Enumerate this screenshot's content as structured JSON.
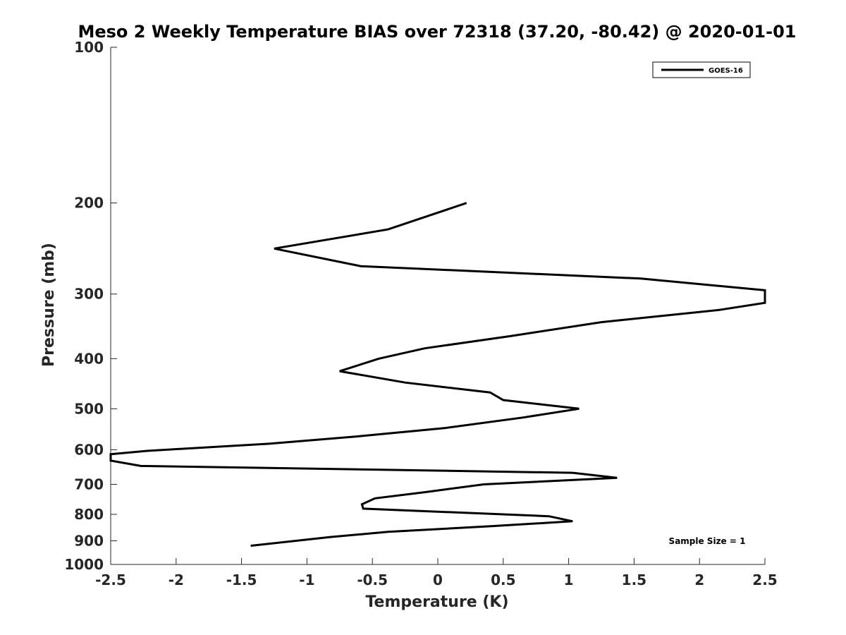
{
  "chart_data": {
    "type": "line",
    "title": "Meso 2 Weekly Temperature BIAS over 72318 (37.20, -80.42) @ 2020-01-01",
    "xlabel": "Temperature (K)",
    "ylabel": "Pressure (mb)",
    "xlim": [
      -2.5,
      2.5
    ],
    "ylim": [
      100,
      1000
    ],
    "yscale": "log",
    "y_reversed": true,
    "x_ticks": [
      "-2.5",
      "-2",
      "-1.5",
      "-1",
      "-0.5",
      "0",
      "0.5",
      "1",
      "1.5",
      "2",
      "2.5"
    ],
    "y_ticks": [
      "100",
      "200",
      "300",
      "400",
      "500",
      "600",
      "700",
      "800",
      "900",
      "1000"
    ],
    "grid": false,
    "legend": {
      "position": "top-right",
      "entries": [
        "GOES-16"
      ]
    },
    "annotation": "Sample Size = 1",
    "series": [
      {
        "name": "GOES-16",
        "color": "#000000",
        "x": [
          0.22,
          -0.38,
          -1.25,
          -0.59,
          1.55,
          2.5,
          2.5,
          2.15,
          1.25,
          0.55,
          -0.1,
          -0.45,
          -0.75,
          -0.25,
          0.4,
          0.5,
          1.08,
          0.65,
          0.05,
          -0.6,
          -1.28,
          -2.22,
          -2.5,
          -2.5,
          -2.27,
          1.03,
          1.37,
          0.35,
          -0.1,
          -0.48,
          -0.58,
          -0.57,
          0.85,
          1.03,
          0.42,
          -0.38,
          -0.82,
          -1.43
        ],
        "y": [
          200,
          225,
          245,
          265,
          280,
          295,
          312,
          322,
          340,
          362,
          382,
          400,
          423,
          445,
          465,
          481,
          500,
          520,
          545,
          565,
          584,
          603,
          612,
          630,
          645,
          665,
          680,
          700,
          725,
          745,
          765,
          780,
          807,
          825,
          843,
          865,
          885,
          920
        ]
      }
    ]
  }
}
